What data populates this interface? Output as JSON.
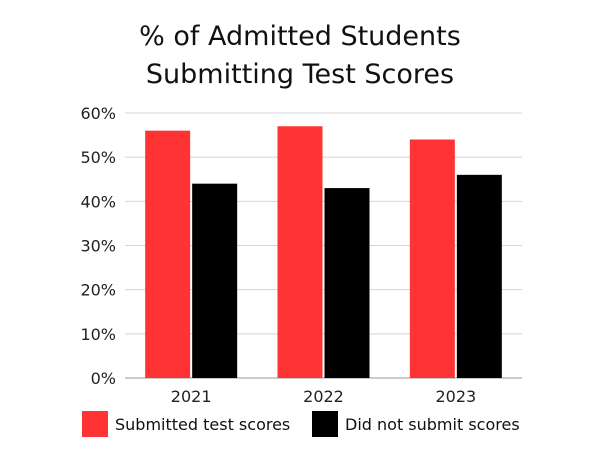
{
  "chart_data": {
    "type": "bar",
    "title_lines": [
      "% of Admitted Students",
      "Submitting Test Scores"
    ],
    "categories": [
      "2021",
      "2022",
      "2023"
    ],
    "series": [
      {
        "name": "Submitted test scores",
        "values": [
          56,
          57,
          54
        ],
        "color": "#ff3333"
      },
      {
        "name": "Did not submit scores",
        "values": [
          44,
          43,
          46
        ],
        "color": "#000000"
      }
    ],
    "ylim": [
      0,
      60
    ],
    "yticks": [
      0,
      10,
      20,
      30,
      40,
      50,
      60
    ],
    "ytick_labels": [
      "0%",
      "10%",
      "20%",
      "30%",
      "40%",
      "50%",
      "60%"
    ],
    "grid": true,
    "legend_position": "bottom"
  }
}
